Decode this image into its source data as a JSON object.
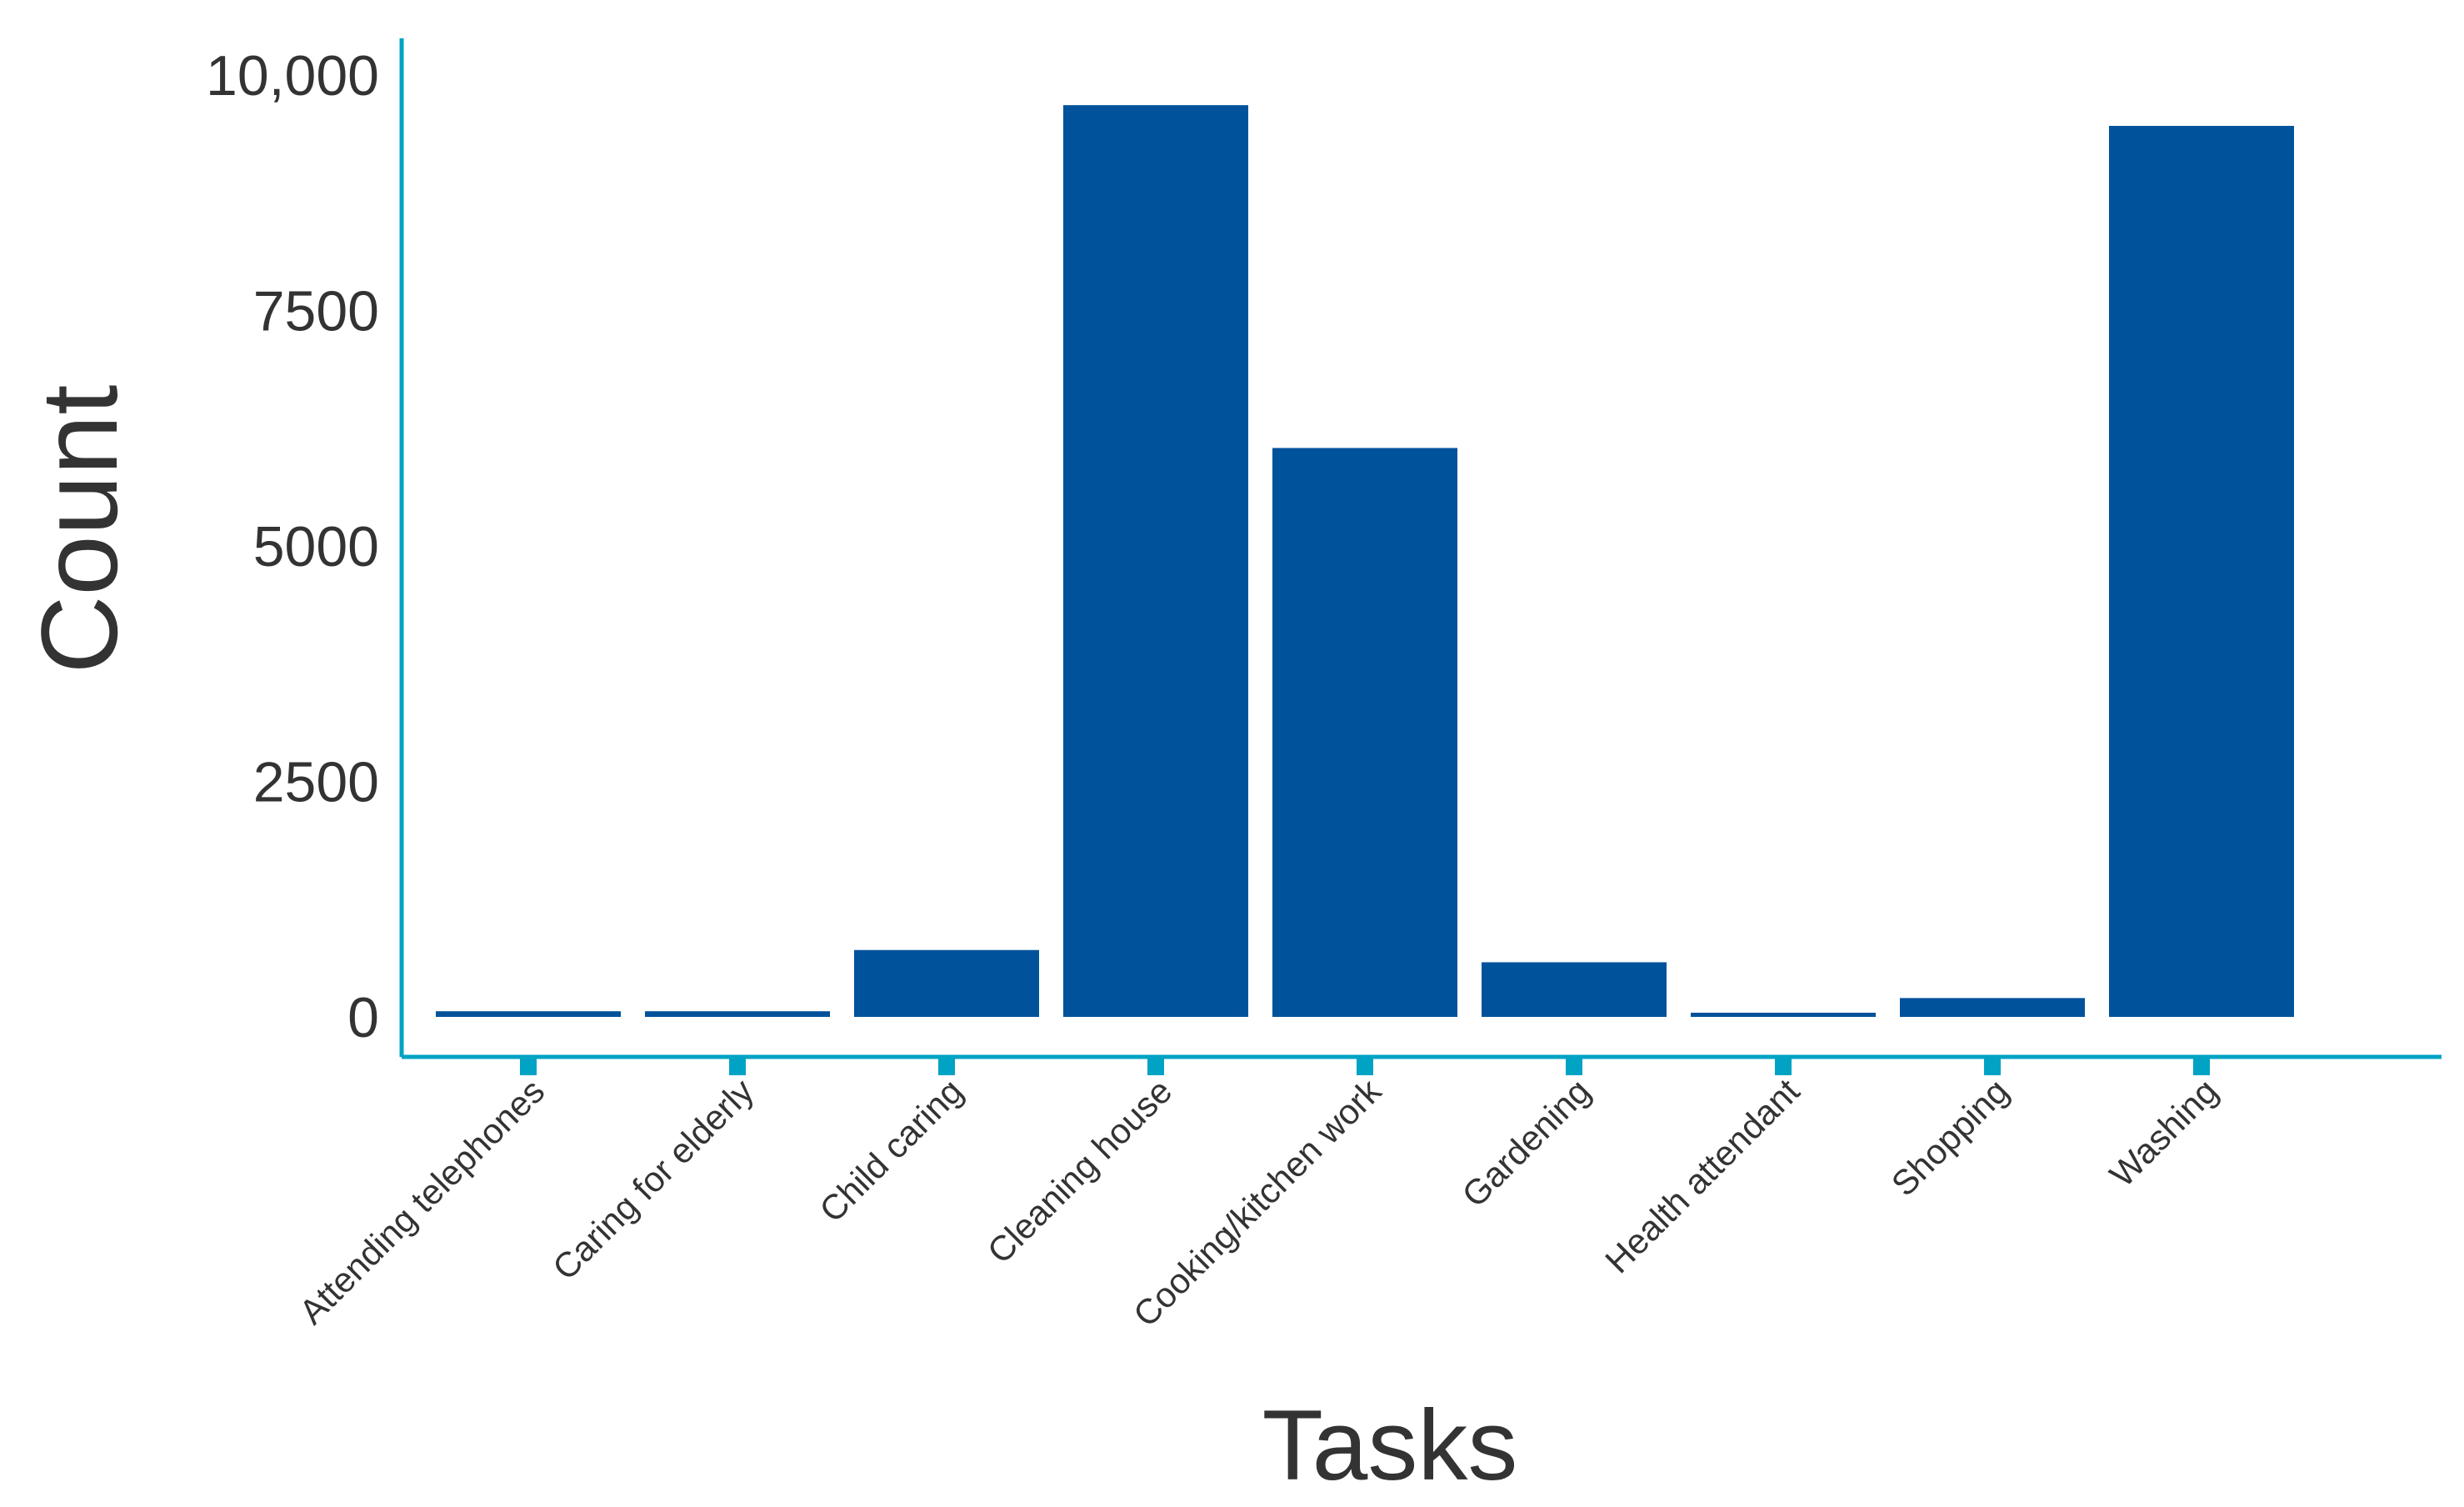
{
  "chart_data": {
    "type": "bar",
    "xlabel": "Tasks",
    "ylabel": "Count",
    "categories": [
      "Attending telephones",
      "Caring for elderly",
      "Child caring",
      "Cleaning house",
      "Cooking/kitchen work",
      "Gardening",
      "Health attendant",
      "Shopping",
      "Washing"
    ],
    "values": [
      60,
      60,
      710,
      9680,
      6040,
      580,
      30,
      200,
      9460
    ],
    "y_ticks": [
      {
        "value": 0,
        "label": "0"
      },
      {
        "value": 2500,
        "label": "2500"
      },
      {
        "value": 5000,
        "label": "5000"
      },
      {
        "value": 7500,
        "label": "7500"
      },
      {
        "value": 10000,
        "label": "10,000"
      }
    ],
    "ylim": [
      -400,
      10400
    ],
    "grid": false,
    "legend": "none",
    "colors": {
      "bar": "#00529b",
      "axis": "#00a3c4",
      "text": "#333333"
    }
  }
}
